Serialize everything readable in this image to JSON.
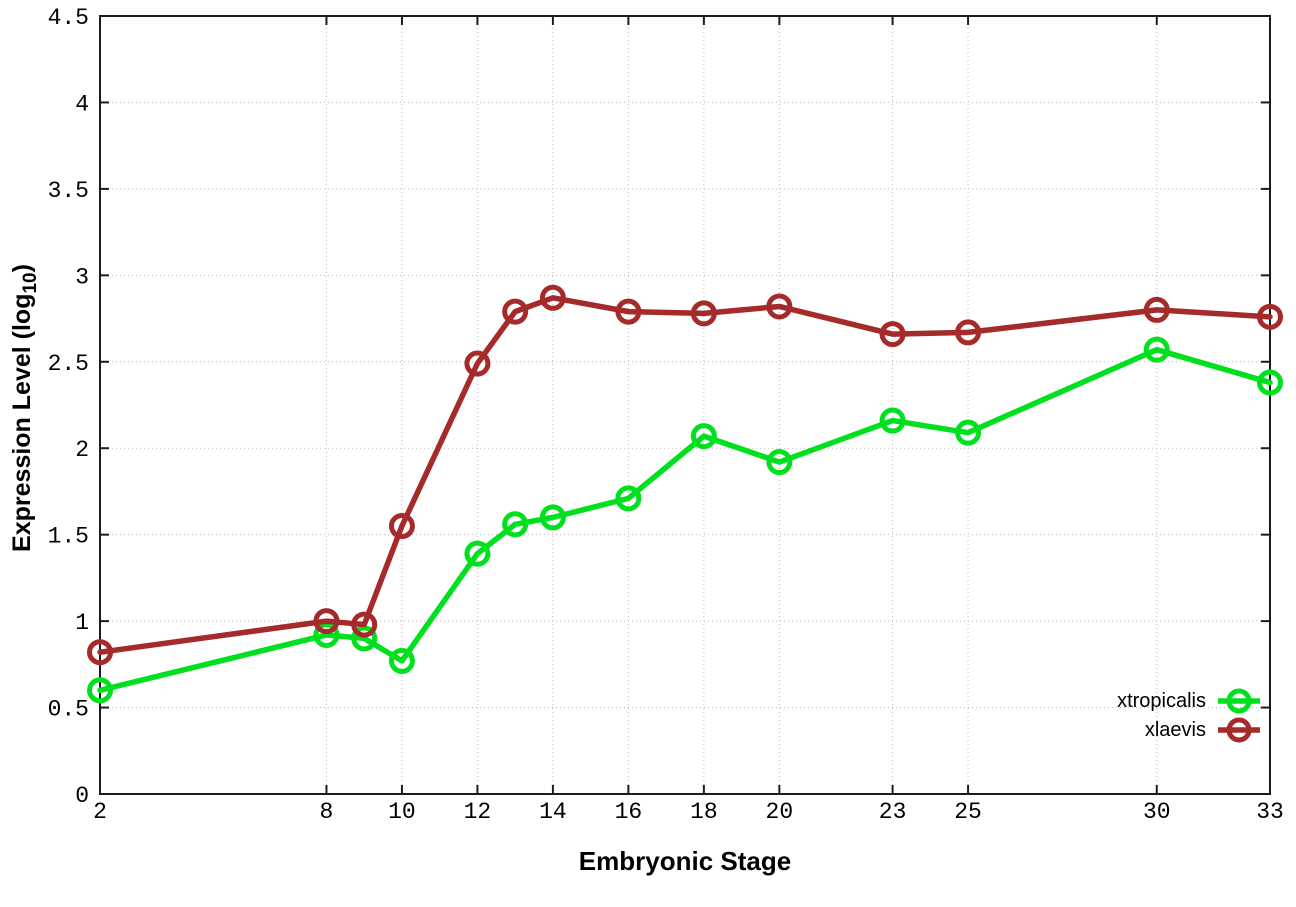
{
  "chart_data": {
    "type": "line",
    "title": "",
    "xlabel": "Embryonic Stage",
    "ylabel": {
      "pre": "Expression Level (log",
      "sub": "10",
      "post": ")"
    },
    "xlim": [
      2,
      33
    ],
    "ylim": [
      0,
      4.5
    ],
    "grid": true,
    "legend_position": "inside-bottom-right",
    "x": [
      2,
      8,
      9,
      10,
      12,
      13,
      14,
      16,
      18,
      20,
      23,
      25,
      30,
      33
    ],
    "xtick_values": [
      2,
      8,
      10,
      12,
      14,
      16,
      18,
      20,
      23,
      25,
      30,
      33
    ],
    "xtick_labels": [
      "2",
      "8",
      "10",
      "12",
      "14",
      "16",
      "18",
      "20",
      "23",
      "25",
      "30",
      "33"
    ],
    "ytick_values": [
      0,
      0.5,
      1,
      1.5,
      2,
      2.5,
      3,
      3.5,
      4,
      4.5
    ],
    "ytick_labels": [
      "0",
      "0.5",
      "1",
      "1.5",
      "2",
      "2.5",
      "3",
      "3.5",
      "4",
      "4.5"
    ],
    "series": [
      {
        "name": "xtropicalis",
        "color": "#00e01e",
        "marker": "open-circle",
        "values": [
          0.6,
          0.92,
          0.9,
          0.77,
          1.39,
          1.56,
          1.6,
          1.71,
          2.07,
          1.92,
          2.16,
          2.09,
          2.57,
          2.38
        ]
      },
      {
        "name": "xlaevis",
        "color": "#a52a2a",
        "marker": "open-circle",
        "values": [
          0.82,
          1.0,
          0.98,
          1.55,
          2.49,
          2.79,
          2.87,
          2.79,
          2.78,
          2.82,
          2.66,
          2.67,
          2.8,
          2.76
        ]
      }
    ]
  },
  "style": {
    "grid_color": "#bbbbbb",
    "axis_color": "#1c1c1c",
    "text_color": "#000000",
    "background": "#ffffff"
  }
}
